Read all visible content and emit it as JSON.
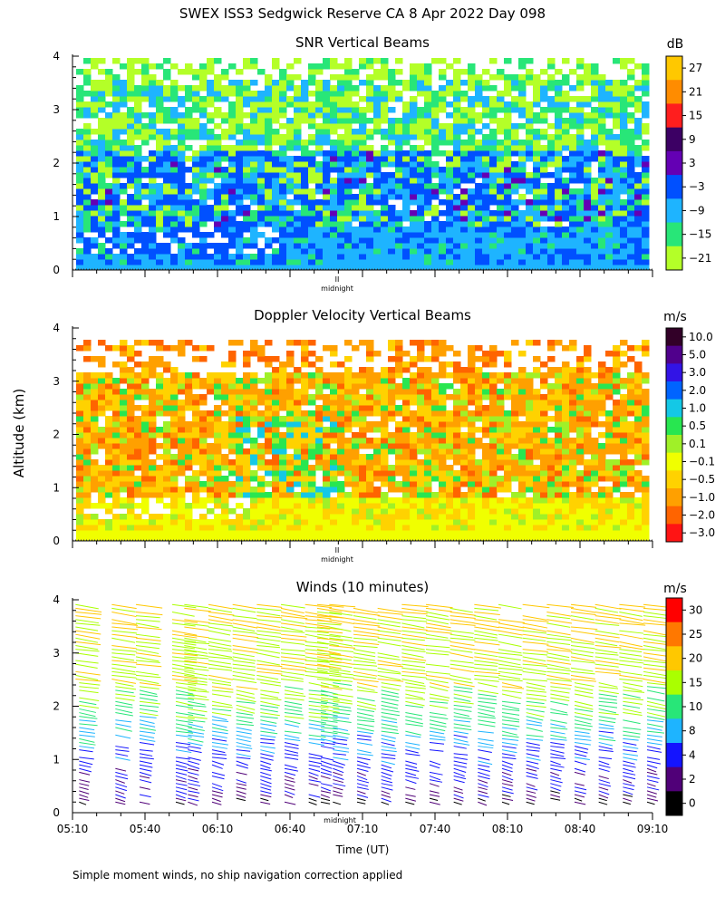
{
  "figure": {
    "title": "SWEX ISS3 Sedgwick Reserve CA   8 Apr 2022 Day 098",
    "ylabel": "Altitude (km)",
    "xlabel": "Time (UT)",
    "footnote": "Simple moment winds, no ship navigation correction applied",
    "midnight_label": "midnight",
    "midnight_marker": "II"
  },
  "chart_data": [
    {
      "type": "heatmap",
      "title": "SNR Vertical Beams",
      "units": "dB",
      "ylim": [
        0,
        4
      ],
      "yticks": [
        "0",
        "1",
        "2",
        "3",
        "4"
      ],
      "xlim": [
        "05:10",
        "09:10"
      ],
      "colorbar": {
        "labels": [
          "27",
          "21",
          "15",
          "9",
          "3",
          "−3",
          "−9",
          "−15",
          "−21"
        ],
        "colors": [
          "#ffc800",
          "#ff8c00",
          "#ff1e1e",
          "#3c0064",
          "#6400b4",
          "#0050ff",
          "#1eb4ff",
          "#28e678",
          "#b4ff28"
        ]
      },
      "description_layers": "blue/cyan low layer below 1 km, mixed blue-green 1-2.5 km, yellow-green 2.5-4 km with gaps"
    },
    {
      "type": "heatmap",
      "title": "Doppler Velocity Vertical Beams",
      "units": "m/s",
      "ylim": [
        0,
        4
      ],
      "yticks": [
        "0",
        "1",
        "2",
        "3",
        "4"
      ],
      "xlim": [
        "05:10",
        "09:10"
      ],
      "colorbar": {
        "labels": [
          "10.0",
          "5.0",
          "3.0",
          "2.0",
          "1.0",
          "0.5",
          "0.1",
          "−0.1",
          "−0.5",
          "−1.0",
          "−2.0",
          "−3.0"
        ],
        "colors": [
          "#320028",
          "#50008c",
          "#3214e6",
          "#0064ff",
          "#14c8e6",
          "#28e650",
          "#a0f028",
          "#f0ff00",
          "#ffd200",
          "#ffa000",
          "#ff6400",
          "#ff1414"
        ]
      },
      "description_layers": "yellow near surface, orange dominant aloft, green/cyan patches near 06:40"
    },
    {
      "type": "scatter",
      "title": "Winds (10 minutes)",
      "units": "m/s",
      "ylim": [
        0,
        4
      ],
      "yticks": [
        "0",
        "1",
        "2",
        "3",
        "4"
      ],
      "xticks": [
        "05:10",
        "05:40",
        "06:10",
        "06:40",
        "07:10",
        "07:40",
        "08:10",
        "08:40",
        "09:10"
      ],
      "xlim_minutes": [
        0,
        240
      ],
      "profile_times_minutes": [
        5,
        20,
        30,
        45,
        50,
        60,
        70,
        80,
        90,
        100,
        105,
        110,
        120,
        130,
        140,
        150,
        160,
        170,
        180,
        190,
        200,
        210,
        220,
        230,
        240
      ],
      "colorbar": {
        "labels": [
          "30",
          "25",
          "20",
          "15",
          "10",
          "8",
          "4",
          "2",
          "0"
        ],
        "colors": [
          "#ff0000",
          "#ff7800",
          "#ffc800",
          "#aaff00",
          "#28e678",
          "#1eb4ff",
          "#1414ff",
          "#500078",
          "#000000"
        ]
      },
      "speed_profile": {
        "altitude_km": [
          0.2,
          0.5,
          0.8,
          1.0,
          1.3,
          1.6,
          2.0,
          2.5,
          3.0,
          3.5,
          3.9
        ],
        "speed_ms": [
          2,
          4,
          5,
          7,
          8,
          10,
          13,
          15,
          15,
          16,
          17
        ]
      }
    }
  ]
}
